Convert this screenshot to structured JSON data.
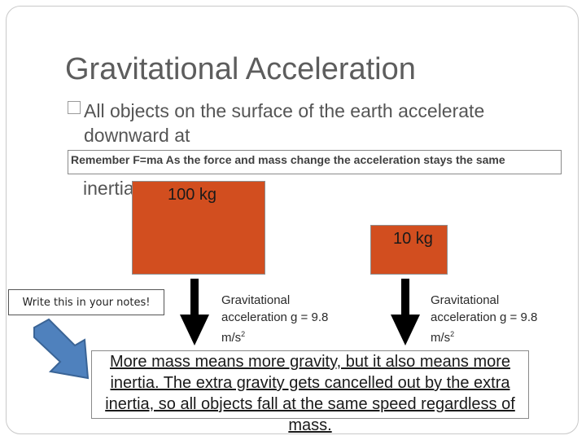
{
  "slide": {
    "title": "Gravitational Acceleration",
    "bullet": {
      "line1": "All objects on the surface of the earth accelerate",
      "line2": "downward at"
    },
    "callout_text": "Remember F=ma  As the force and mass change the acceleration stays the same",
    "inertia_fragment": "inertia.",
    "box_large_label": "100 kg",
    "box_small_label": "10 kg",
    "notes_label": "Write this in your notes!",
    "grav_left": {
      "line1": "Gravitational",
      "line2": "acceleration g = 9.8",
      "unit": "m/s",
      "exp": "2"
    },
    "grav_right": {
      "line1": "Gravitational",
      "line2": "acceleration g = 9.8",
      "unit": "m/s",
      "exp": "2"
    },
    "conclusion": "More mass means more gravity, but it also means more inertia. The extra gravity gets cancelled out by the extra inertia, so all objects fall at the same speed regardless of mass."
  },
  "colors": {
    "box_fill": "#d24e1f",
    "diag_arrow_fill": "#4f81bd",
    "title_text": "#5d5d5d"
  },
  "icons": {
    "bullet": "square-bullet-icon",
    "down_arrow": "down-arrow-icon",
    "diag_arrow": "diagonal-arrow-icon"
  }
}
